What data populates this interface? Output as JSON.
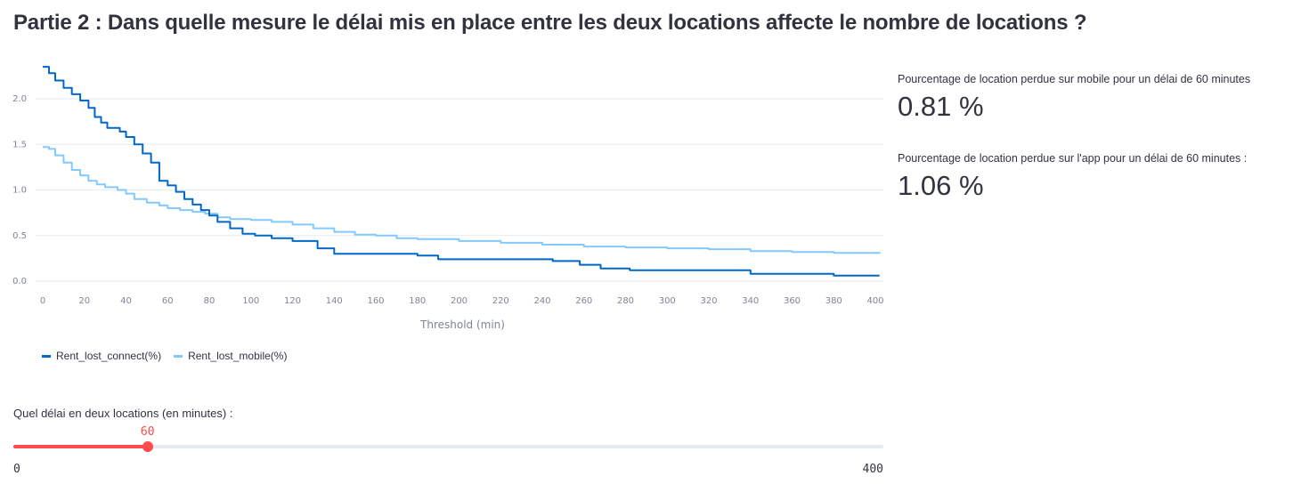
{
  "header": {
    "title": "Partie 2 : Dans quelle mesure le délai mis en place entre les deux locations affecte le nombre de locations ?"
  },
  "chart_data": {
    "type": "line",
    "xlabel": "Threshold (min)",
    "ylabel": "",
    "xlim": [
      0,
      400
    ],
    "ylim": [
      0,
      2.4
    ],
    "x_ticks": [
      0,
      20,
      40,
      60,
      80,
      100,
      120,
      140,
      160,
      180,
      200,
      220,
      240,
      260,
      280,
      300,
      320,
      340,
      360,
      380,
      400
    ],
    "y_ticks": [
      "0.0",
      "0.5",
      "1.0",
      "1.5",
      "2.0"
    ],
    "legend_position": "bottom-left",
    "series": [
      {
        "name": "Rent_lost_connect(%)",
        "color": "#0068c9",
        "points": [
          [
            0,
            2.35
          ],
          [
            3,
            2.28
          ],
          [
            6,
            2.2
          ],
          [
            10,
            2.12
          ],
          [
            14,
            2.05
          ],
          [
            18,
            1.98
          ],
          [
            22,
            1.9
          ],
          [
            25,
            1.8
          ],
          [
            28,
            1.74
          ],
          [
            31,
            1.68
          ],
          [
            37,
            1.64
          ],
          [
            40,
            1.58
          ],
          [
            44,
            1.5
          ],
          [
            48,
            1.4
          ],
          [
            52,
            1.3
          ],
          [
            56,
            1.1
          ],
          [
            60,
            1.05
          ],
          [
            64,
            0.98
          ],
          [
            68,
            0.9
          ],
          [
            72,
            0.84
          ],
          [
            76,
            0.78
          ],
          [
            80,
            0.72
          ],
          [
            84,
            0.65
          ],
          [
            90,
            0.58
          ],
          [
            96,
            0.52
          ],
          [
            102,
            0.5
          ],
          [
            110,
            0.47
          ],
          [
            120,
            0.44
          ],
          [
            132,
            0.36
          ],
          [
            140,
            0.3
          ],
          [
            160,
            0.3
          ],
          [
            180,
            0.28
          ],
          [
            190,
            0.24
          ],
          [
            200,
            0.24
          ],
          [
            230,
            0.24
          ],
          [
            245,
            0.22
          ],
          [
            258,
            0.18
          ],
          [
            268,
            0.14
          ],
          [
            282,
            0.12
          ],
          [
            300,
            0.12
          ],
          [
            340,
            0.08
          ],
          [
            380,
            0.06
          ],
          [
            402,
            0.06
          ]
        ]
      },
      {
        "name": "Rent_lost_mobile(%)",
        "color": "#83c9ff",
        "points": [
          [
            0,
            1.47
          ],
          [
            3,
            1.45
          ],
          [
            6,
            1.38
          ],
          [
            10,
            1.3
          ],
          [
            14,
            1.22
          ],
          [
            18,
            1.16
          ],
          [
            22,
            1.1
          ],
          [
            26,
            1.06
          ],
          [
            30,
            1.03
          ],
          [
            36,
            1.0
          ],
          [
            40,
            0.96
          ],
          [
            44,
            0.9
          ],
          [
            50,
            0.86
          ],
          [
            56,
            0.83
          ],
          [
            60,
            0.8
          ],
          [
            66,
            0.78
          ],
          [
            72,
            0.76
          ],
          [
            78,
            0.74
          ],
          [
            84,
            0.7
          ],
          [
            90,
            0.68
          ],
          [
            100,
            0.67
          ],
          [
            110,
            0.65
          ],
          [
            120,
            0.62
          ],
          [
            130,
            0.58
          ],
          [
            140,
            0.54
          ],
          [
            150,
            0.51
          ],
          [
            160,
            0.5
          ],
          [
            170,
            0.47
          ],
          [
            180,
            0.46
          ],
          [
            200,
            0.44
          ],
          [
            220,
            0.42
          ],
          [
            240,
            0.4
          ],
          [
            260,
            0.38
          ],
          [
            280,
            0.37
          ],
          [
            300,
            0.36
          ],
          [
            320,
            0.35
          ],
          [
            340,
            0.33
          ],
          [
            360,
            0.32
          ],
          [
            380,
            0.31
          ],
          [
            402,
            0.3
          ]
        ]
      }
    ]
  },
  "metrics": {
    "mobile_label": "Pourcentage de location perdue sur mobile pour un délai de 60 minutes",
    "mobile_value": "0.81 %",
    "app_label": "Pourcentage de location perdue sur l'app pour un délai de 60 minutes :",
    "app_value": "1.06 %"
  },
  "slider": {
    "label": "Quel délai en deux locations (en minutes) :",
    "min": 0,
    "max": 400,
    "value": 60,
    "min_label": "0",
    "max_label": "400",
    "value_label": "60",
    "accent": "#ff4b4b"
  }
}
